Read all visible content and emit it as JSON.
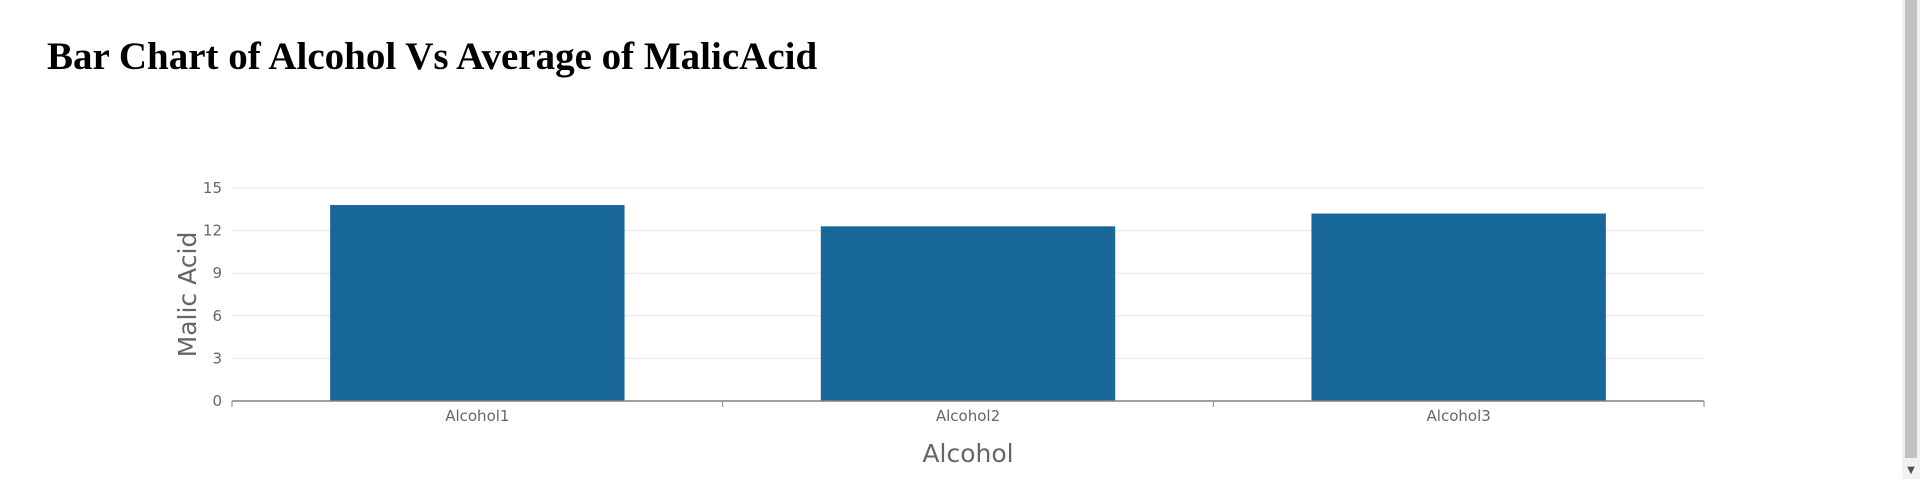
{
  "page": {
    "title": "Bar Chart of Alcohol Vs Average of MalicAcid"
  },
  "chart_data": {
    "type": "bar",
    "categories": [
      "Alcohol1",
      "Alcohol2",
      "Alcohol3"
    ],
    "values": [
      13.8,
      12.3,
      13.2
    ],
    "xlabel": "Alcohol",
    "ylabel": "Malic Acid",
    "ylim": [
      0,
      15
    ],
    "yticks": [
      0,
      3,
      6,
      9,
      12,
      15
    ],
    "grid": true,
    "legend": "none",
    "bar_color": "#186799"
  },
  "scrollbar": {
    "down_arrow_icon": "chevron-down-icon"
  }
}
